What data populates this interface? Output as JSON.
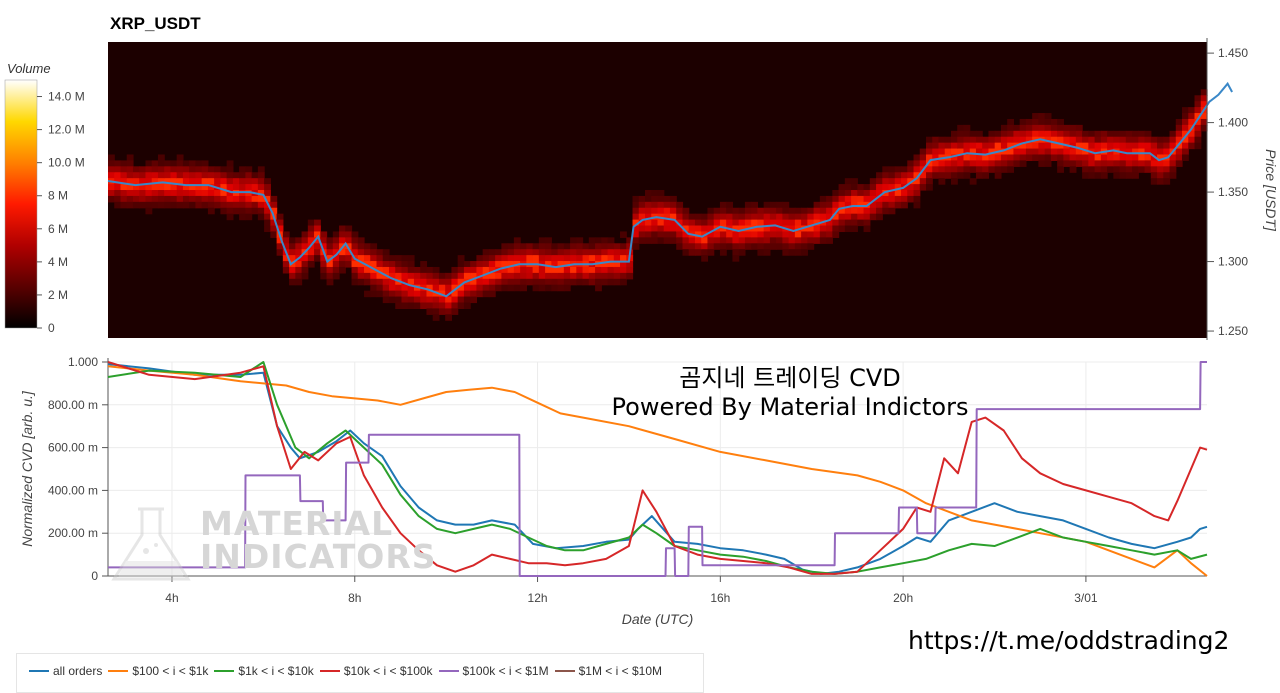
{
  "chart_data": [
    {
      "type": "heatmap",
      "title": "XRP_USDT",
      "ylabel": "Price [USDT]",
      "ylim": [
        1.245,
        1.458
      ],
      "yticks": [
        "1.450",
        "1.400",
        "1.350",
        "1.300",
        "1.250"
      ],
      "colorbar": {
        "title": "Volume",
        "range": [
          0,
          15000000
        ],
        "ticks": [
          "0",
          "2 M",
          "4 M",
          "6 M",
          "8 M",
          "10.0 M",
          "12.0 M",
          "14.0 M"
        ],
        "colors": [
          "#000000",
          "#5a0000",
          "#b00000",
          "#ff1a00",
          "#ff8000",
          "#ffd800",
          "#ffffff"
        ]
      },
      "price_series": {
        "color": "#3a88c8",
        "x": [
          2.6,
          3.2,
          3.8,
          4.3,
          4.8,
          5.3,
          5.7,
          6.0,
          6.2,
          6.4,
          6.6,
          6.8,
          7.0,
          7.2,
          7.4,
          7.6,
          7.8,
          8.0,
          8.4,
          8.8,
          9.2,
          9.6,
          10.0,
          10.4,
          10.8,
          11.2,
          11.6,
          12.0,
          12.4,
          12.8,
          13.2,
          13.6,
          14.0,
          14.1,
          14.3,
          14.6,
          15.0,
          15.3,
          15.6,
          16.0,
          16.4,
          16.8,
          17.2,
          17.6,
          18.0,
          18.4,
          18.6,
          18.9,
          19.2,
          19.6,
          20.0,
          20.3,
          20.6,
          21.0,
          21.4,
          21.8,
          22.2,
          22.6,
          23.0,
          23.4,
          23.8,
          24.2,
          24.6,
          24.9,
          25.2,
          25.4,
          25.6,
          25.8,
          26.0,
          26.3,
          26.6,
          26.7,
          26.9,
          27.1,
          27.2
        ],
        "y": [
          1.358,
          1.355,
          1.357,
          1.355,
          1.355,
          1.35,
          1.35,
          1.348,
          1.335,
          1.315,
          1.298,
          1.303,
          1.31,
          1.318,
          1.3,
          1.305,
          1.313,
          1.302,
          1.295,
          1.288,
          1.283,
          1.28,
          1.275,
          1.285,
          1.29,
          1.295,
          1.298,
          1.298,
          1.296,
          1.298,
          1.298,
          1.3,
          1.3,
          1.325,
          1.33,
          1.332,
          1.33,
          1.32,
          1.318,
          1.325,
          1.322,
          1.325,
          1.326,
          1.322,
          1.326,
          1.33,
          1.338,
          1.34,
          1.34,
          1.35,
          1.353,
          1.36,
          1.373,
          1.375,
          1.378,
          1.377,
          1.38,
          1.385,
          1.388,
          1.385,
          1.382,
          1.378,
          1.38,
          1.378,
          1.378,
          1.378,
          1.373,
          1.375,
          1.383,
          1.395,
          1.41,
          1.415,
          1.42,
          1.428,
          1.422
        ]
      }
    },
    {
      "type": "line",
      "xlabel": "Date (UTC)",
      "ylabel": "Normalized CVD [arb. u.]",
      "xlim": [
        2.6,
        26.65
      ],
      "ylim": [
        0,
        1
      ],
      "xticks": [
        {
          "value": 4,
          "label": "4h"
        },
        {
          "value": 8,
          "label": "8h"
        },
        {
          "value": 12,
          "label": "12h"
        },
        {
          "value": 16,
          "label": "16h"
        },
        {
          "value": 20,
          "label": "20h"
        },
        {
          "value": 24,
          "label": "3/01"
        }
      ],
      "yticks": [
        {
          "value": 0,
          "label": "0"
        },
        {
          "value": 0.2,
          "label": "200.00 m"
        },
        {
          "value": 0.4,
          "label": "400.00 m"
        },
        {
          "value": 0.6,
          "label": "600.00 m"
        },
        {
          "value": 0.8,
          "label": "800.00 m"
        },
        {
          "value": 1.0,
          "label": "1.000"
        }
      ],
      "series": [
        {
          "name": "all orders",
          "color": "#1f77b4",
          "x": [
            2.6,
            3.5,
            4.5,
            5.5,
            6.0,
            6.3,
            6.6,
            6.8,
            7.2,
            7.6,
            7.9,
            8.2,
            8.6,
            9.0,
            9.4,
            9.8,
            10.2,
            10.6,
            11.0,
            11.5,
            11.9,
            12.4,
            13.0,
            13.5,
            14.0,
            14.2,
            14.5,
            15.0,
            15.5,
            16.0,
            16.5,
            17.0,
            17.4,
            17.8,
            18.2,
            18.6,
            19.0,
            19.5,
            20.0,
            20.3,
            20.6,
            21.0,
            21.5,
            22.0,
            22.5,
            23.0,
            23.5,
            24.0,
            24.5,
            25.0,
            25.5,
            26.0,
            26.3,
            26.5,
            26.65
          ],
          "y": [
            0.99,
            0.97,
            0.94,
            0.94,
            0.95,
            0.7,
            0.6,
            0.55,
            0.58,
            0.63,
            0.68,
            0.62,
            0.56,
            0.42,
            0.32,
            0.26,
            0.24,
            0.24,
            0.26,
            0.24,
            0.15,
            0.13,
            0.14,
            0.16,
            0.17,
            0.22,
            0.28,
            0.16,
            0.15,
            0.13,
            0.12,
            0.1,
            0.08,
            0.03,
            0.01,
            0.02,
            0.04,
            0.08,
            0.14,
            0.18,
            0.16,
            0.26,
            0.3,
            0.34,
            0.3,
            0.28,
            0.26,
            0.22,
            0.18,
            0.15,
            0.13,
            0.16,
            0.18,
            0.22,
            0.23
          ]
        },
        {
          "name": "$100 < i < $1k",
          "color": "#ff7f0e",
          "x": [
            2.6,
            3.5,
            4.5,
            5.5,
            6.5,
            7.0,
            7.5,
            8.0,
            8.5,
            9.0,
            9.5,
            10.0,
            10.5,
            11.0,
            11.5,
            12.0,
            12.5,
            13.0,
            14.0,
            15.0,
            16.0,
            17.0,
            18.0,
            19.0,
            19.5,
            20.0,
            20.5,
            21.0,
            21.5,
            22.0,
            22.5,
            23.0,
            24.0,
            25.0,
            25.5,
            26.0,
            26.3,
            26.65
          ],
          "y": [
            0.98,
            0.96,
            0.94,
            0.91,
            0.89,
            0.86,
            0.84,
            0.83,
            0.82,
            0.8,
            0.83,
            0.86,
            0.87,
            0.88,
            0.86,
            0.81,
            0.76,
            0.74,
            0.7,
            0.64,
            0.58,
            0.54,
            0.5,
            0.47,
            0.44,
            0.4,
            0.34,
            0.3,
            0.26,
            0.24,
            0.22,
            0.2,
            0.16,
            0.08,
            0.04,
            0.12,
            0.06,
            0.0
          ]
        },
        {
          "name": "$1k < i < $10k",
          "color": "#2ca02c",
          "x": [
            2.6,
            3.5,
            4.5,
            5.5,
            6.0,
            6.3,
            6.7,
            7.0,
            7.4,
            7.8,
            8.2,
            8.6,
            9.0,
            9.4,
            9.8,
            10.2,
            10.6,
            11.0,
            11.4,
            11.8,
            12.2,
            12.6,
            13.0,
            13.5,
            14.0,
            14.3,
            14.6,
            15.0,
            15.5,
            16.0,
            16.5,
            17.0,
            17.5,
            18.0,
            18.5,
            19.0,
            19.5,
            20.0,
            20.5,
            21.0,
            21.5,
            22.0,
            22.5,
            23.0,
            23.5,
            24.0,
            24.5,
            25.0,
            25.5,
            26.0,
            26.3,
            26.65
          ],
          "y": [
            0.93,
            0.96,
            0.95,
            0.93,
            1.0,
            0.8,
            0.6,
            0.55,
            0.62,
            0.68,
            0.6,
            0.52,
            0.38,
            0.28,
            0.22,
            0.2,
            0.22,
            0.24,
            0.22,
            0.18,
            0.14,
            0.12,
            0.12,
            0.15,
            0.18,
            0.24,
            0.2,
            0.14,
            0.12,
            0.1,
            0.09,
            0.07,
            0.04,
            0.02,
            0.01,
            0.02,
            0.04,
            0.06,
            0.08,
            0.12,
            0.15,
            0.14,
            0.18,
            0.22,
            0.18,
            0.16,
            0.14,
            0.12,
            0.1,
            0.12,
            0.08,
            0.1
          ]
        },
        {
          "name": "$10k < i < $100k",
          "color": "#d62728",
          "x": [
            2.6,
            3.5,
            4.5,
            5.5,
            6.0,
            6.3,
            6.6,
            6.9,
            7.2,
            7.6,
            7.9,
            8.2,
            8.6,
            9.0,
            9.4,
            9.8,
            10.2,
            10.6,
            11.0,
            11.4,
            11.8,
            12.2,
            12.6,
            13.0,
            13.5,
            14.0,
            14.3,
            14.6,
            15.0,
            15.5,
            16.0,
            16.5,
            17.0,
            17.5,
            18.0,
            18.5,
            19.0,
            19.5,
            20.0,
            20.3,
            20.6,
            20.9,
            21.2,
            21.5,
            21.8,
            22.2,
            22.6,
            23.0,
            23.5,
            24.0,
            24.5,
            25.0,
            25.5,
            25.8,
            26.0,
            26.3,
            26.5,
            26.65
          ],
          "y": [
            1.0,
            0.94,
            0.92,
            0.95,
            0.98,
            0.7,
            0.5,
            0.58,
            0.54,
            0.62,
            0.65,
            0.47,
            0.32,
            0.2,
            0.12,
            0.05,
            0.02,
            0.05,
            0.1,
            0.08,
            0.06,
            0.06,
            0.05,
            0.06,
            0.08,
            0.14,
            0.4,
            0.3,
            0.14,
            0.1,
            0.08,
            0.07,
            0.06,
            0.04,
            0.01,
            0.01,
            0.02,
            0.12,
            0.22,
            0.32,
            0.3,
            0.55,
            0.48,
            0.72,
            0.74,
            0.68,
            0.55,
            0.48,
            0.43,
            0.4,
            0.37,
            0.34,
            0.28,
            0.26,
            0.35,
            0.5,
            0.6,
            0.59
          ]
        },
        {
          "name": "$100k < i < $1M",
          "color": "#9467bd",
          "x": [
            2.6,
            5.6,
            5.61,
            6.8,
            6.81,
            7.3,
            7.31,
            7.8,
            7.81,
            8.3,
            8.31,
            11.6,
            11.61,
            14.8,
            14.81,
            15.0,
            15.01,
            15.3,
            15.31,
            15.6,
            15.61,
            18.5,
            18.51,
            19.9,
            19.91,
            20.3,
            20.31,
            20.7,
            20.71,
            21.1,
            21.11,
            21.6,
            21.61,
            26.5,
            26.51,
            26.65
          ],
          "y": [
            0.04,
            0.04,
            0.47,
            0.47,
            0.35,
            0.35,
            0.26,
            0.26,
            0.53,
            0.53,
            0.66,
            0.66,
            0.0,
            0.0,
            0.13,
            0.13,
            0.0,
            0.0,
            0.23,
            0.23,
            0.05,
            0.05,
            0.2,
            0.2,
            0.32,
            0.32,
            0.2,
            0.2,
            0.32,
            0.32,
            0.32,
            0.32,
            0.78,
            0.78,
            1.0,
            1.0
          ]
        },
        {
          "name": "$1M < i < $10M",
          "color": "#8c564b",
          "x": [],
          "y": []
        }
      ]
    }
  ],
  "overlay": {
    "title_line1": "곰지네 트레이딩 CVD",
    "title_line2": "Powered By Material Indictors",
    "logo_line1": "MATERIAL",
    "logo_line2": "INDICATORS",
    "link": "https://t.me/oddstrading2"
  }
}
